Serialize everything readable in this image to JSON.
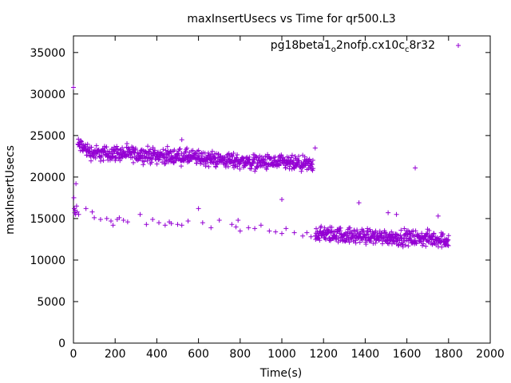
{
  "chart_data": {
    "type": "scatter",
    "title": "maxInsertUsecs vs Time for qr500.L3",
    "xlabel": "Time(s)",
    "ylabel": "maxInsertUsecs",
    "xlim": [
      0,
      2000
    ],
    "ylim": [
      0,
      37000
    ],
    "xticks": [
      0,
      200,
      400,
      600,
      800,
      1000,
      1200,
      1400,
      1600,
      1800,
      2000
    ],
    "yticks": [
      0,
      5000,
      10000,
      15000,
      20000,
      25000,
      30000,
      35000
    ],
    "grid": false,
    "legend_position": "top-right",
    "marker": "+",
    "color": "#9400d3",
    "series": [
      {
        "name": "pg18beta1_o2nofp.cx10c_c8r32",
        "name_main": "pg18beta1",
        "name_sub1": "o",
        "name_mid": "2nofp.cx10c",
        "name_sub2": "c",
        "name_end": "8r32",
        "upper_band": [
          [
            20,
            23900
          ],
          [
            40,
            23700
          ],
          [
            60,
            23300
          ],
          [
            80,
            23000
          ],
          [
            100,
            22900
          ],
          [
            150,
            22800
          ],
          [
            200,
            22900
          ],
          [
            250,
            22800
          ],
          [
            300,
            22700
          ],
          [
            350,
            22700
          ],
          [
            400,
            22600
          ],
          [
            450,
            22500
          ],
          [
            500,
            22500
          ],
          [
            550,
            22400
          ],
          [
            600,
            22300
          ],
          [
            650,
            22200
          ],
          [
            700,
            22100
          ],
          [
            750,
            22000
          ],
          [
            800,
            21900
          ],
          [
            850,
            21800
          ],
          [
            900,
            21800
          ],
          [
            950,
            21700
          ],
          [
            1000,
            21700
          ],
          [
            1050,
            21600
          ],
          [
            1100,
            21500
          ],
          [
            1150,
            21400
          ]
        ],
        "lower_band": [
          [
            1160,
            13200
          ],
          [
            1200,
            13100
          ],
          [
            1250,
            13100
          ],
          [
            1300,
            13000
          ],
          [
            1350,
            12900
          ],
          [
            1400,
            12900
          ],
          [
            1450,
            12800
          ],
          [
            1500,
            12800
          ],
          [
            1550,
            12700
          ],
          [
            1600,
            12700
          ],
          [
            1650,
            12600
          ],
          [
            1700,
            12600
          ],
          [
            1750,
            12500
          ],
          [
            1800,
            12400
          ]
        ],
        "early_cluster": [
          [
            0,
            30800
          ],
          [
            2,
            17500
          ],
          [
            4,
            16200
          ],
          [
            6,
            15700
          ],
          [
            8,
            16000
          ],
          [
            10,
            15500
          ],
          [
            12,
            19200
          ],
          [
            15,
            16500
          ],
          [
            18,
            15800
          ],
          [
            25,
            15500
          ]
        ],
        "sparse_points": [
          [
            60,
            16200
          ],
          [
            90,
            15800
          ],
          [
            100,
            15100
          ],
          [
            130,
            14900
          ],
          [
            160,
            15000
          ],
          [
            180,
            14700
          ],
          [
            190,
            14200
          ],
          [
            210,
            14900
          ],
          [
            220,
            15100
          ],
          [
            240,
            14800
          ],
          [
            260,
            14600
          ],
          [
            320,
            15500
          ],
          [
            350,
            14300
          ],
          [
            380,
            14900
          ],
          [
            410,
            14500
          ],
          [
            440,
            14200
          ],
          [
            460,
            14600
          ],
          [
            470,
            14400
          ],
          [
            500,
            14300
          ],
          [
            520,
            14200
          ],
          [
            550,
            14700
          ],
          [
            600,
            16200
          ],
          [
            620,
            14500
          ],
          [
            660,
            13900
          ],
          [
            700,
            14800
          ],
          [
            760,
            14300
          ],
          [
            780,
            14000
          ],
          [
            790,
            14800
          ],
          [
            800,
            13500
          ],
          [
            840,
            13900
          ],
          [
            870,
            13800
          ],
          [
            900,
            14200
          ],
          [
            940,
            13500
          ],
          [
            970,
            13400
          ],
          [
            1000,
            13200
          ],
          [
            1020,
            13800
          ],
          [
            1060,
            13300
          ],
          [
            1100,
            12900
          ],
          [
            1120,
            13300
          ],
          [
            1140,
            12800
          ]
        ],
        "outliers": [
          [
            1000,
            17300
          ],
          [
            1370,
            16900
          ],
          [
            1510,
            15700
          ],
          [
            1550,
            15500
          ],
          [
            1640,
            21100
          ],
          [
            1750,
            15300
          ],
          [
            1160,
            23500
          ],
          [
            520,
            24500
          ]
        ]
      }
    ]
  }
}
